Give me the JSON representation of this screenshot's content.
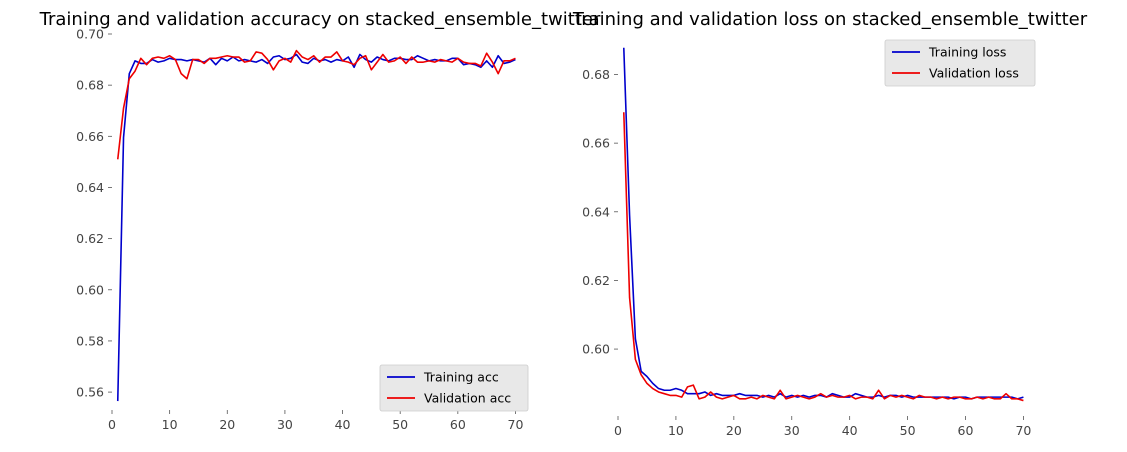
{
  "chart_data": [
    {
      "type": "line",
      "title": "Training and validation accuracy on stacked_ensemble_twitter",
      "xlabel": "",
      "ylabel": "",
      "xlim": [
        0,
        72
      ],
      "ylim": [
        0.553,
        0.7
      ],
      "xticks": [
        0,
        10,
        20,
        30,
        40,
        50,
        60,
        70
      ],
      "xtick_labels": [
        "0",
        "10",
        "20",
        "30",
        "40",
        "50",
        "60",
        "70"
      ],
      "yticks": [
        0.56,
        0.58,
        0.6,
        0.62,
        0.64,
        0.66,
        0.68,
        0.7
      ],
      "ytick_labels": [
        "0.56",
        "0.58",
        "0.60",
        "0.62",
        "0.64",
        "0.66",
        "0.68",
        "0.70"
      ],
      "grid": false,
      "legend_position": "lower-right",
      "x": [
        1,
        2,
        3,
        4,
        5,
        6,
        7,
        8,
        9,
        10,
        11,
        12,
        13,
        14,
        15,
        16,
        17,
        18,
        19,
        20,
        21,
        22,
        23,
        24,
        25,
        26,
        27,
        28,
        29,
        30,
        31,
        32,
        33,
        34,
        35,
        36,
        37,
        38,
        39,
        40,
        41,
        42,
        43,
        44,
        45,
        46,
        47,
        48,
        49,
        50,
        51,
        52,
        53,
        54,
        55,
        56,
        57,
        58,
        59,
        60,
        61,
        62,
        63,
        64,
        65,
        66,
        67,
        68,
        69,
        70
      ],
      "series": [
        {
          "name": "Training acc",
          "color": "#0000cc",
          "values": [
            0.5565,
            0.6595,
            0.6845,
            0.6895,
            0.6885,
            0.6885,
            0.69,
            0.689,
            0.6895,
            0.6905,
            0.69,
            0.69,
            0.6895,
            0.69,
            0.6895,
            0.689,
            0.6905,
            0.688,
            0.6905,
            0.6895,
            0.691,
            0.6895,
            0.69,
            0.6895,
            0.689,
            0.69,
            0.6885,
            0.691,
            0.6915,
            0.69,
            0.6905,
            0.692,
            0.689,
            0.6885,
            0.6905,
            0.6895,
            0.69,
            0.689,
            0.69,
            0.6895,
            0.691,
            0.687,
            0.692,
            0.69,
            0.689,
            0.691,
            0.69,
            0.6895,
            0.6905,
            0.6905,
            0.69,
            0.69,
            0.6915,
            0.6905,
            0.6895,
            0.69,
            0.6895,
            0.6895,
            0.6905,
            0.6905,
            0.688,
            0.6885,
            0.688,
            0.687,
            0.6895,
            0.687,
            0.6915,
            0.6885,
            0.689,
            0.69
          ]
        },
        {
          "name": "Validation acc",
          "color": "#ee0000",
          "values": [
            0.651,
            0.671,
            0.6825,
            0.6855,
            0.6905,
            0.688,
            0.6905,
            0.691,
            0.6905,
            0.6915,
            0.69,
            0.6845,
            0.6825,
            0.69,
            0.69,
            0.6885,
            0.6905,
            0.6905,
            0.691,
            0.6915,
            0.691,
            0.691,
            0.689,
            0.6895,
            0.693,
            0.6925,
            0.69,
            0.686,
            0.6895,
            0.6905,
            0.689,
            0.6935,
            0.691,
            0.69,
            0.6915,
            0.689,
            0.691,
            0.691,
            0.693,
            0.6895,
            0.689,
            0.688,
            0.6905,
            0.6915,
            0.686,
            0.689,
            0.692,
            0.689,
            0.6895,
            0.691,
            0.6885,
            0.691,
            0.689,
            0.689,
            0.6895,
            0.689,
            0.69,
            0.6895,
            0.689,
            0.6905,
            0.689,
            0.6885,
            0.6885,
            0.6875,
            0.6925,
            0.689,
            0.6845,
            0.6895,
            0.6895,
            0.6905
          ]
        }
      ]
    },
    {
      "type": "line",
      "title": "Training and validation loss on stacked_ensemble_twitter",
      "xlabel": "",
      "ylabel": "",
      "xlim": [
        0,
        72
      ],
      "ylim": [
        0.5805,
        0.6918
      ],
      "xticks": [
        0,
        10,
        20,
        30,
        40,
        50,
        60,
        70
      ],
      "xtick_labels": [
        "0",
        "10",
        "20",
        "30",
        "40",
        "50",
        "60",
        "70"
      ],
      "yticks": [
        0.6,
        0.62,
        0.64,
        0.66,
        0.68
      ],
      "ytick_labels": [
        "0.60",
        "0.62",
        "0.64",
        "0.66",
        "0.68"
      ],
      "grid": false,
      "legend_position": "upper-right",
      "x": [
        1,
        2,
        3,
        4,
        5,
        6,
        7,
        8,
        9,
        10,
        11,
        12,
        13,
        14,
        15,
        16,
        17,
        18,
        19,
        20,
        21,
        22,
        23,
        24,
        25,
        26,
        27,
        28,
        29,
        30,
        31,
        32,
        33,
        34,
        35,
        36,
        37,
        38,
        39,
        40,
        41,
        42,
        43,
        44,
        45,
        46,
        47,
        48,
        49,
        50,
        51,
        52,
        53,
        54,
        55,
        56,
        57,
        58,
        59,
        60,
        61,
        62,
        63,
        64,
        65,
        66,
        67,
        68,
        69,
        70
      ],
      "series": [
        {
          "name": "Training loss",
          "color": "#0000cc",
          "values": [
            0.6878,
            0.639,
            0.603,
            0.5935,
            0.592,
            0.59,
            0.5885,
            0.588,
            0.588,
            0.5885,
            0.588,
            0.587,
            0.587,
            0.587,
            0.5875,
            0.5865,
            0.587,
            0.5865,
            0.5865,
            0.5865,
            0.587,
            0.5865,
            0.5865,
            0.5865,
            0.586,
            0.5865,
            0.586,
            0.587,
            0.586,
            0.5865,
            0.586,
            0.5865,
            0.586,
            0.5865,
            0.5865,
            0.586,
            0.587,
            0.5865,
            0.586,
            0.586,
            0.587,
            0.5865,
            0.586,
            0.586,
            0.5865,
            0.586,
            0.5865,
            0.5865,
            0.586,
            0.5865,
            0.586,
            0.586,
            0.586,
            0.586,
            0.586,
            0.586,
            0.586,
            0.5855,
            0.586,
            0.586,
            0.5855,
            0.586,
            0.586,
            0.586,
            0.586,
            0.586,
            0.586,
            0.586,
            0.5855,
            0.586
          ]
        },
        {
          "name": "Validation loss",
          "color": "#ee0000",
          "values": [
            0.669,
            0.615,
            0.597,
            0.5925,
            0.59,
            0.5885,
            0.5875,
            0.587,
            0.5865,
            0.5865,
            0.586,
            0.589,
            0.5895,
            0.5855,
            0.586,
            0.5875,
            0.586,
            0.5855,
            0.586,
            0.5865,
            0.5855,
            0.5855,
            0.586,
            0.5855,
            0.5865,
            0.586,
            0.5855,
            0.588,
            0.5855,
            0.586,
            0.5865,
            0.586,
            0.5855,
            0.586,
            0.587,
            0.586,
            0.5865,
            0.586,
            0.586,
            0.5865,
            0.5855,
            0.586,
            0.586,
            0.5855,
            0.588,
            0.5855,
            0.5865,
            0.586,
            0.5865,
            0.586,
            0.5855,
            0.5865,
            0.586,
            0.586,
            0.5855,
            0.586,
            0.5855,
            0.586,
            0.586,
            0.5855,
            0.5855,
            0.586,
            0.5855,
            0.586,
            0.5855,
            0.5855,
            0.587,
            0.5855,
            0.5855,
            0.585
          ]
        }
      ]
    }
  ]
}
